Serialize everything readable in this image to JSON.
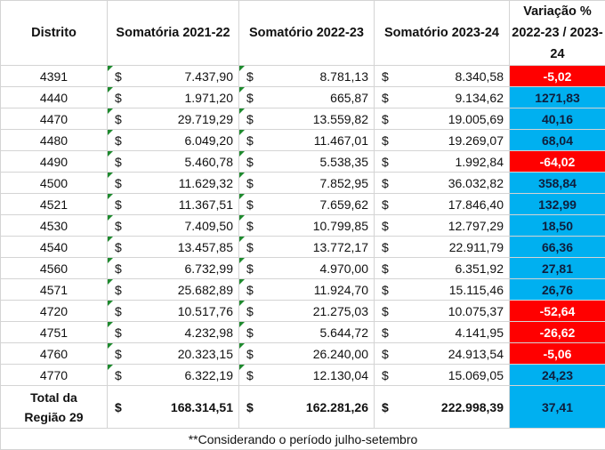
{
  "headers": [
    "Distrito",
    "Somatória 2021-22",
    "Somatório 2022-23",
    "Somatório 2023-24",
    "Variação % 2022-23 / 2023-24"
  ],
  "currency": "$",
  "colors": {
    "negative": "#ff0000",
    "positive": "#00b0f0"
  },
  "rows": [
    {
      "distrito": "4391",
      "v1": "7.437,90",
      "v2": "8.781,13",
      "v3": "8.340,58",
      "var": "-5,02",
      "sign": "neg"
    },
    {
      "distrito": "4440",
      "v1": "1.971,20",
      "v2": "665,87",
      "v3": "9.134,62",
      "var": "1271,83",
      "sign": "pos"
    },
    {
      "distrito": "4470",
      "v1": "29.719,29",
      "v2": "13.559,82",
      "v3": "19.005,69",
      "var": "40,16",
      "sign": "pos"
    },
    {
      "distrito": "4480",
      "v1": "6.049,20",
      "v2": "11.467,01",
      "v3": "19.269,07",
      "var": "68,04",
      "sign": "pos"
    },
    {
      "distrito": "4490",
      "v1": "5.460,78",
      "v2": "5.538,35",
      "v3": "1.992,84",
      "var": "-64,02",
      "sign": "neg"
    },
    {
      "distrito": "4500",
      "v1": "11.629,32",
      "v2": "7.852,95",
      "v3": "36.032,82",
      "var": "358,84",
      "sign": "pos"
    },
    {
      "distrito": "4521",
      "v1": "11.367,51",
      "v2": "7.659,62",
      "v3": "17.846,40",
      "var": "132,99",
      "sign": "pos"
    },
    {
      "distrito": "4530",
      "v1": "7.409,50",
      "v2": "10.799,85",
      "v3": "12.797,29",
      "var": "18,50",
      "sign": "pos"
    },
    {
      "distrito": "4540",
      "v1": "13.457,85",
      "v2": "13.772,17",
      "v3": "22.911,79",
      "var": "66,36",
      "sign": "pos"
    },
    {
      "distrito": "4560",
      "v1": "6.732,99",
      "v2": "4.970,00",
      "v3": "6.351,92",
      "var": "27,81",
      "sign": "pos"
    },
    {
      "distrito": "4571",
      "v1": "25.682,89",
      "v2": "11.924,70",
      "v3": "15.115,46",
      "var": "26,76",
      "sign": "pos"
    },
    {
      "distrito": "4720",
      "v1": "10.517,76",
      "v2": "21.275,03",
      "v3": "10.075,37",
      "var": "-52,64",
      "sign": "neg"
    },
    {
      "distrito": "4751",
      "v1": "4.232,98",
      "v2": "5.644,72",
      "v3": "4.141,95",
      "var": "-26,62",
      "sign": "neg"
    },
    {
      "distrito": "4760",
      "v1": "20.323,15",
      "v2": "26.240,00",
      "v3": "24.913,54",
      "var": "-5,06",
      "sign": "neg"
    },
    {
      "distrito": "4770",
      "v1": "6.322,19",
      "v2": "12.130,04",
      "v3": "15.069,05",
      "var": "24,23",
      "sign": "pos"
    }
  ],
  "total": {
    "label_line1": "Total da",
    "label_line2": "Região 29",
    "v1": "168.314,51",
    "v2": "162.281,26",
    "v3": "222.998,39",
    "var": "37,41"
  },
  "footnote": "**Considerando o período julho-setembro"
}
